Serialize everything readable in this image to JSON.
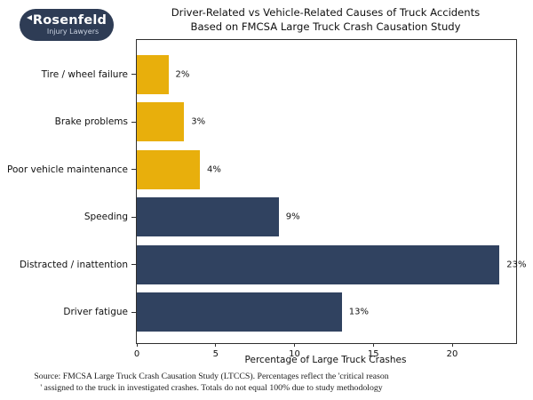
{
  "logo": {
    "name": "Rosenfeld",
    "subtitle": "Injury Lawyers",
    "bg_color": "#2E3C55"
  },
  "chart_data": {
    "type": "bar",
    "orientation": "horizontal",
    "title_line1": "Driver-Related vs Vehicle-Related Causes of Truck Accidents",
    "title_line2": "Based on FMCSA Large Truck Crash Causation Study",
    "xlabel": "Percentage of Large Truck Crashes",
    "categories": [
      "Tire / wheel failure",
      "Brake problems",
      "Poor vehicle maintenance",
      "Speeding",
      "Distracted / inattention",
      "Driver fatigue"
    ],
    "values": [
      2,
      3,
      4,
      9,
      23,
      13
    ],
    "value_labels": [
      "2%",
      "3%",
      "4%",
      "9%",
      "23%",
      "13%"
    ],
    "bar_colors": [
      "#E8AF0C",
      "#E8AF0C",
      "#E8AF0C",
      "#304260",
      "#304260",
      "#304260"
    ],
    "xticks": [
      0,
      5,
      10,
      15,
      20
    ],
    "xlim": [
      0,
      24
    ],
    "grid": false,
    "legend": "none"
  },
  "source": {
    "line1": "Source: FMCSA Large Truck Crash Causation Study (LTCCS). Percentages reflect the 'critical reason",
    "line2": "' assigned to the truck in investigated crashes. Totals do not equal 100% due to study methodology"
  }
}
